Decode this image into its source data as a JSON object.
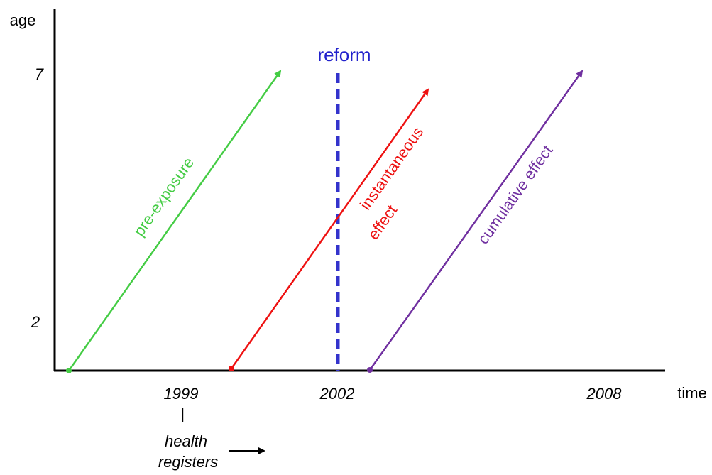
{
  "axes": {
    "y_label": "age",
    "x_label": "time",
    "y_ticks": [
      "7",
      "2"
    ],
    "x_ticks": [
      "1999",
      "2002",
      "2008"
    ]
  },
  "annotations": {
    "reform": "reform",
    "health_registers": [
      "|",
      "health",
      "registers"
    ]
  },
  "arrows": [
    {
      "label": "pre-exposure"
    },
    {
      "label": [
        "instantaneous",
        "effect"
      ]
    },
    {
      "label": "cumulative effect"
    }
  ]
}
